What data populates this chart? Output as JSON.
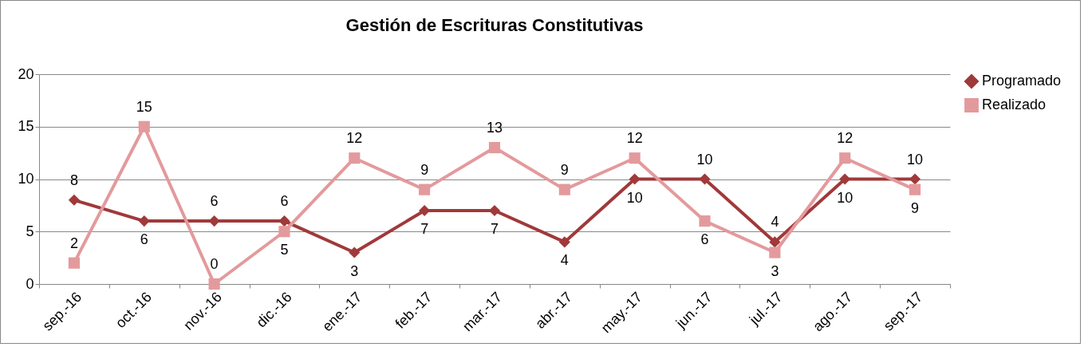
{
  "chart_data": {
    "type": "line",
    "title": "Gestión de Escrituras Constitutivas",
    "categories": [
      "sep.-16",
      "oct.-16",
      "nov.-16",
      "dic.-16",
      "ene.-17",
      "feb.-17",
      "mar.-17",
      "abr.-17",
      "may.-17",
      "jun.-17",
      "jul.-17",
      "ago.-17",
      "sep.-17"
    ],
    "series": [
      {
        "name": "Programado",
        "color": "#a0393a",
        "marker": "diamond",
        "values": [
          8,
          6,
          6,
          6,
          3,
          7,
          7,
          4,
          10,
          10,
          4,
          10,
          10
        ]
      },
      {
        "name": "Realizado",
        "color": "#e39a9c",
        "marker": "square",
        "values": [
          2,
          15,
          0,
          5,
          12,
          9,
          13,
          9,
          12,
          6,
          3,
          12,
          9
        ]
      }
    ],
    "ylim": [
      0,
      20
    ],
    "yticks": [
      0,
      5,
      10,
      15,
      20
    ],
    "grid": "y",
    "legend": "right",
    "data_labels": true
  }
}
